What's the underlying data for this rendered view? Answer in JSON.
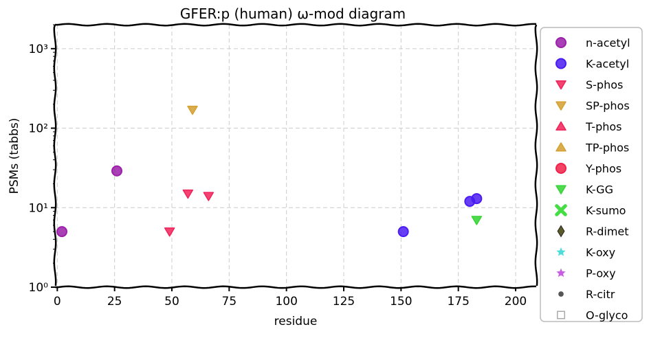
{
  "chart_data": {
    "type": "scatter",
    "title": "GFER:p (human) ω-mod diagram",
    "xlabel": "residue",
    "ylabel": "PSMs (tabbs)",
    "xlim": [
      -1,
      209
    ],
    "ylim": [
      1,
      2000
    ],
    "yscale": "log",
    "grid": true,
    "legend_position": "right-outside",
    "x_ticks": [
      "0",
      "25",
      "50",
      "75",
      "100",
      "125",
      "150",
      "175",
      "200"
    ],
    "y_ticks": [
      "10⁰",
      "10¹",
      "10²",
      "10³"
    ],
    "series": [
      {
        "name": "n-acetyl",
        "marker": "circle",
        "color": "#9b1fa8",
        "points": [
          [
            2,
            5
          ],
          [
            26,
            29
          ]
        ]
      },
      {
        "name": "K-acetyl",
        "marker": "circle",
        "color": "#4b1cf2",
        "points": [
          [
            151,
            5
          ],
          [
            180,
            12
          ],
          [
            183,
            13
          ]
        ]
      },
      {
        "name": "S-phos",
        "marker": "triangle-down",
        "color": "#f0225a",
        "points": [
          [
            49,
            5
          ],
          [
            57,
            15
          ],
          [
            66,
            14
          ]
        ]
      },
      {
        "name": "SP-phos",
        "marker": "triangle-down",
        "color": "#d4a030",
        "points": [
          [
            59,
            170
          ]
        ]
      },
      {
        "name": "T-phos",
        "marker": "triangle-up",
        "color": "#f0225a",
        "points": []
      },
      {
        "name": "TP-phos",
        "marker": "triangle-up",
        "color": "#d4a030",
        "points": []
      },
      {
        "name": "Y-phos",
        "marker": "circle",
        "color": "#f0224a",
        "points": []
      },
      {
        "name": "K-GG",
        "marker": "triangle-down",
        "color": "#33d433",
        "points": [
          [
            183,
            7
          ]
        ]
      },
      {
        "name": "K-sumo",
        "marker": "x",
        "color": "#44dd44",
        "points": []
      },
      {
        "name": "R-dimet",
        "marker": "diamond",
        "color": "#5c5c2a",
        "points": []
      },
      {
        "name": "K-oxy",
        "marker": "star",
        "color": "#33d6d6",
        "points": []
      },
      {
        "name": "P-oxy",
        "marker": "star",
        "color": "#c040e0",
        "points": []
      },
      {
        "name": "R-citr",
        "marker": "small-circle",
        "color": "#555555",
        "points": []
      },
      {
        "name": "O-glyco",
        "marker": "square-open",
        "color": "#aaaaaa",
        "points": []
      }
    ]
  }
}
